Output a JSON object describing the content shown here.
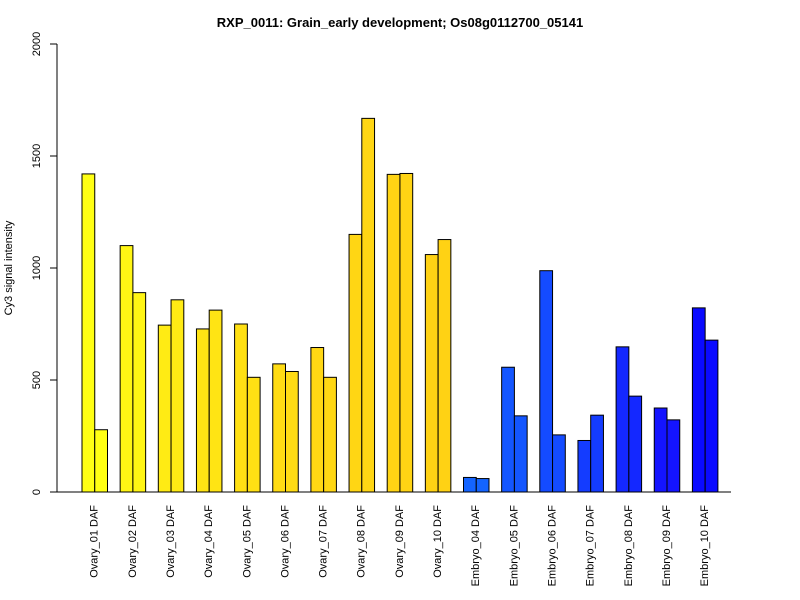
{
  "chart_data": {
    "type": "bar",
    "title": "RXP_0011: Grain_early development; Os08g0112700_05141",
    "xlabel": "",
    "ylabel": "Cy3 signal intensity",
    "ylim": [
      0,
      2000
    ],
    "yticks": [
      0,
      500,
      1000,
      1500,
      2000
    ],
    "grid": false,
    "categories": [
      "Ovary_01 DAF",
      "Ovary_02 DAF",
      "Ovary_03 DAF",
      "Ovary_04 DAF",
      "Ovary_05 DAF",
      "Ovary_06 DAF",
      "Ovary_07 DAF",
      "Ovary_08 DAF",
      "Ovary_09 DAF",
      "Ovary_10 DAF",
      "Embryo_04 DAF",
      "Embryo_05 DAF",
      "Embryo_06 DAF",
      "Embryo_07 DAF",
      "Embryo_08 DAF",
      "Embryo_09 DAF",
      "Embryo_10 DAF"
    ],
    "values": [
      [
        1420,
        278
      ],
      [
        1100,
        890
      ],
      [
        745,
        858
      ],
      [
        728,
        812
      ],
      [
        750,
        512
      ],
      [
        572,
        538
      ],
      [
        645,
        512
      ],
      [
        1150,
        1668
      ],
      [
        1418,
        1422
      ],
      [
        1060,
        1127
      ],
      [
        65,
        60
      ],
      [
        557,
        340
      ],
      [
        988,
        255
      ],
      [
        230,
        343
      ],
      [
        648,
        428
      ],
      [
        375,
        322
      ],
      [
        822,
        678
      ]
    ],
    "colors": [
      "#FFFF14",
      "#FFF514",
      "#FFEB14",
      "#FFE414",
      "#FFE014",
      "#FFDC14",
      "#FFD714",
      "#FFD614",
      "#FFD414",
      "#FFD214",
      "#1464FF",
      "#1456FF",
      "#144BFF",
      "#143CFF",
      "#1428FF",
      "#1414FF",
      "#0A0AFF"
    ]
  }
}
